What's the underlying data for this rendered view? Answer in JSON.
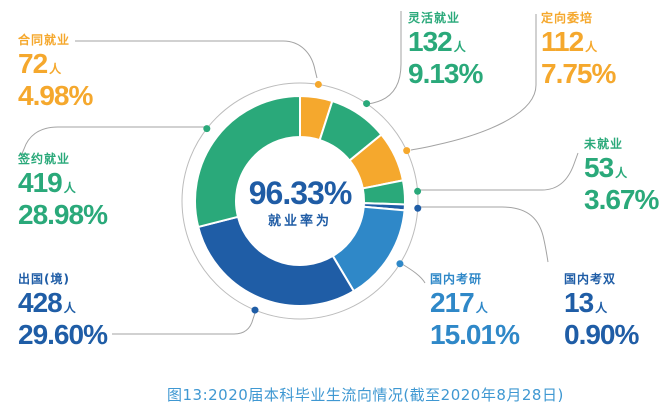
{
  "chart_data": {
    "type": "pie",
    "title": "图13:2020届本科毕业生流向情况(截至2020年8月28日)",
    "title_color": "#3f98d2",
    "center": {
      "value": "96.33%",
      "caption": "就业率为",
      "color": "#1f5ca5"
    },
    "count_unit": "人",
    "legend_position": "around-donut-with-leader-lines",
    "start_angle_deg": 0,
    "direction": "clockwise",
    "slices": [
      {
        "label": "合同就业",
        "count": 72,
        "count_suffix": "人",
        "percent": "4.98%",
        "value": 4.98,
        "color": "#f5a82d"
      },
      {
        "label": "灵活就业",
        "count": 132,
        "count_suffix": "人",
        "percent": "9.13%",
        "value": 9.13,
        "color": "#2aa97a"
      },
      {
        "label": "定向委培",
        "count": 112,
        "count_suffix": "人",
        "percent": "7.75%",
        "value": 7.75,
        "color": "#f5a82d"
      },
      {
        "label": "未就业",
        "count": 53,
        "count_suffix": "人",
        "percent": "3.67%",
        "value": 3.67,
        "color": "#2aa97a"
      },
      {
        "label": "国内考双",
        "count": 13,
        "count_suffix": "人",
        "percent": "0.90%",
        "value": 0.9,
        "color": "#1f5da6"
      },
      {
        "label": "国内考研",
        "count": 217,
        "count_suffix": "人",
        "percent": "15.01%",
        "value": 15.01,
        "color": "#2f88c8"
      },
      {
        "label": "出国(境)",
        "count": 428,
        "count_suffix": "人",
        "percent": "29.60%",
        "value": 29.6,
        "color": "#1f5da6"
      },
      {
        "label": "签约就业",
        "count": 419,
        "count_suffix": "人",
        "percent": "28.98%",
        "value": 28.98,
        "color": "#2aa97a"
      }
    ],
    "style": {
      "leader_line_color": "#a3a3a3",
      "guide_circle_color": "#bcbcbc",
      "slice_gap_color": "#ffffff",
      "background": "#ffffff"
    }
  }
}
